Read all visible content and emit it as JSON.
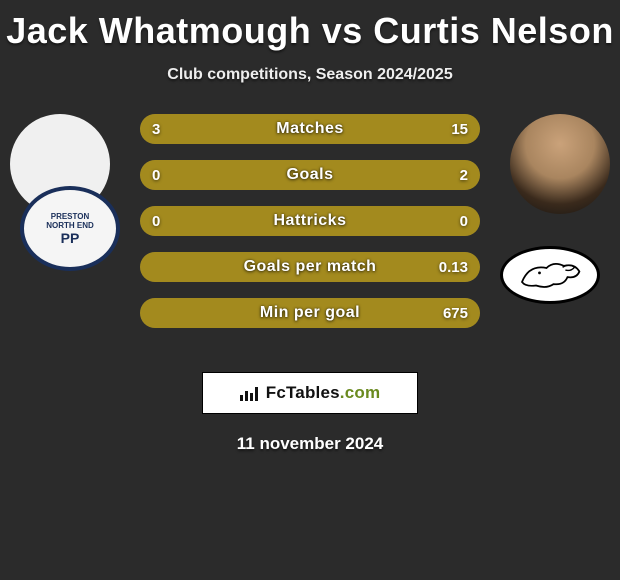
{
  "title": "Jack Whatmough vs Curtis Nelson",
  "subtitle": "Club competitions, Season 2024/2025",
  "date": "11 november 2024",
  "brand": {
    "name": "FcTables",
    "domain": ".com"
  },
  "colors": {
    "player1_bar": "#a38a1e",
    "player2_bar": "#a38a1e",
    "neutral_bar": "#a38a1e",
    "background": "#2b2b2b"
  },
  "stats": [
    {
      "label": "Matches",
      "p1": "3",
      "p2": "15",
      "p1_pct": 16.7,
      "p2_pct": 83.3
    },
    {
      "label": "Goals",
      "p1": "0",
      "p2": "2",
      "p1_pct": 0,
      "p2_pct": 100
    },
    {
      "label": "Hattricks",
      "p1": "0",
      "p2": "0",
      "p1_pct": 50,
      "p2_pct": 50
    },
    {
      "label": "Goals per match",
      "p1": "",
      "p2": "0.13",
      "p1_pct": 0,
      "p2_pct": 100
    },
    {
      "label": "Min per goal",
      "p1": "",
      "p2": "675",
      "p1_pct": 0,
      "p2_pct": 100
    }
  ],
  "typography": {
    "title_fontsize": 36,
    "subtitle_fontsize": 16,
    "stat_label_fontsize": 16,
    "stat_value_fontsize": 15,
    "date_fontsize": 17
  }
}
